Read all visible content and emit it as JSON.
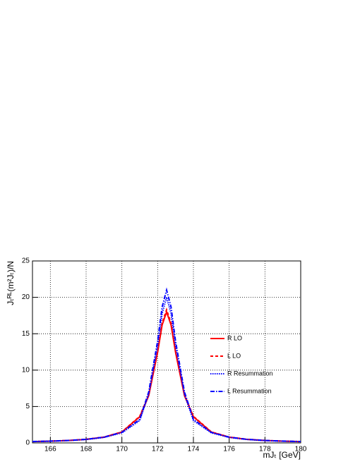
{
  "chart_data": {
    "type": "line",
    "x": [
      165,
      166,
      167,
      168,
      169,
      170,
      171,
      171.5,
      172,
      172.25,
      172.5,
      172.75,
      173,
      173.5,
      174,
      175,
      176,
      177,
      178,
      179,
      180
    ],
    "series": [
      {
        "name": "R  LO",
        "color": "#ff0000",
        "style": "solid",
        "values": [
          0.18,
          0.24,
          0.33,
          0.49,
          0.79,
          1.49,
          3.6,
          6.48,
          12.46,
          16.2,
          18.0,
          16.2,
          12.46,
          6.48,
          3.6,
          1.49,
          0.79,
          0.49,
          0.33,
          0.24,
          0.18
        ]
      },
      {
        "name": "L  LO",
        "color": "#ff0000",
        "style": "dashed",
        "values": [
          0.18,
          0.24,
          0.34,
          0.5,
          0.8,
          1.51,
          3.66,
          6.59,
          12.67,
          16.47,
          18.3,
          16.47,
          12.67,
          6.59,
          3.66,
          1.51,
          0.8,
          0.5,
          0.34,
          0.24,
          0.18
        ]
      },
      {
        "name": "R  Resummation",
        "color": "#0000ff",
        "style": "dotted",
        "values": [
          0.18,
          0.23,
          0.32,
          0.47,
          0.75,
          1.38,
          3.08,
          6.67,
          13.33,
          17.78,
          20,
          17.78,
          13.33,
          6.67,
          3.08,
          1.38,
          0.75,
          0.47,
          0.32,
          0.23,
          0.18
        ]
      },
      {
        "name": "L  Resummation",
        "color": "#0000ff",
        "style": "dashdot",
        "values": [
          0.19,
          0.25,
          0.34,
          0.49,
          0.79,
          1.45,
          3.23,
          7.0,
          14.0,
          18.67,
          21,
          18.67,
          14.0,
          7.0,
          3.23,
          1.45,
          0.79,
          0.49,
          0.34,
          0.25,
          0.19
        ]
      }
    ],
    "xlabel": "mJₜ [GeV]",
    "ylabel": "Jₜᴿᴸ(m²Jₜ)/N",
    "xlim": [
      165,
      180
    ],
    "xticks": [
      166,
      168,
      170,
      172,
      174,
      176,
      178,
      180
    ],
    "ylim": [
      0,
      25
    ],
    "yticks": [
      0,
      5,
      10,
      15,
      20,
      25
    ],
    "grid": true
  }
}
